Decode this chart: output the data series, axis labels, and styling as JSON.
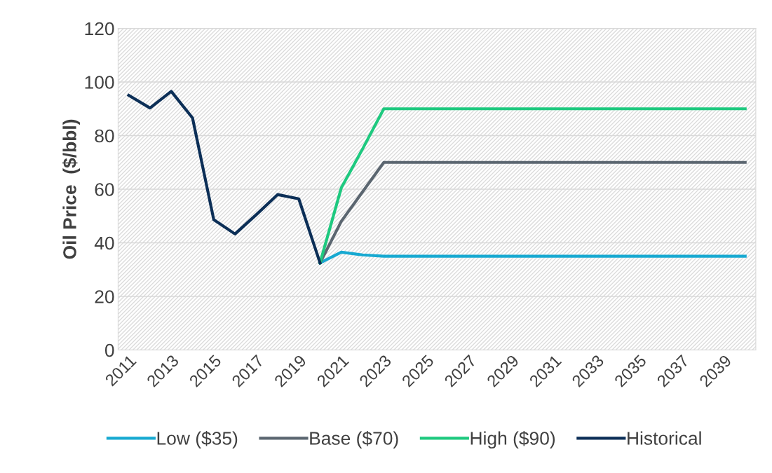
{
  "chart_data": {
    "type": "line",
    "ylabel": "Oil Price  ($/bbl)",
    "categories": [
      "2011",
      null,
      "2013",
      null,
      "2015",
      null,
      "2017",
      null,
      "2019",
      null,
      "2021",
      null,
      "2023",
      null,
      "2025",
      null,
      "2027",
      null,
      "2029",
      null,
      "2031",
      null,
      "2033",
      null,
      "2035",
      null,
      "2037",
      null,
      "2039",
      null
    ],
    "series": [
      {
        "name": "Low ($35)",
        "color": "#17a9d1",
        "values": [
          null,
          null,
          null,
          null,
          null,
          null,
          null,
          null,
          null,
          32.5,
          36.5,
          35.5,
          35,
          35,
          35,
          35,
          35,
          35,
          35,
          35,
          35,
          35,
          35,
          35,
          35,
          35,
          35,
          35,
          35,
          35
        ]
      },
      {
        "name": "Base ($70)",
        "color": "#5b6670",
        "values": [
          null,
          null,
          null,
          null,
          null,
          null,
          null,
          null,
          null,
          32.5,
          48,
          59,
          70,
          70,
          70,
          70,
          70,
          70,
          70,
          70,
          70,
          70,
          70,
          70,
          70,
          70,
          70,
          70,
          70,
          70
        ]
      },
      {
        "name": "High ($90)",
        "color": "#1ec97f",
        "values": [
          null,
          null,
          null,
          null,
          null,
          null,
          null,
          null,
          null,
          32.5,
          60.5,
          75,
          90,
          90,
          90,
          90,
          90,
          90,
          90,
          90,
          90,
          90,
          90,
          90,
          90,
          90,
          90,
          90,
          90,
          90
        ]
      },
      {
        "name": "Historical",
        "color": "#0c2f57",
        "values": [
          95,
          90.3,
          96.5,
          86.6,
          48.6,
          43.3,
          50.5,
          58,
          56.4,
          32.5,
          null,
          null,
          null,
          null,
          null,
          null,
          null,
          null,
          null,
          null,
          null,
          null,
          null,
          null,
          null,
          null,
          null,
          null,
          null,
          null
        ]
      }
    ],
    "ylim": [
      0,
      120
    ],
    "yticks": [
      0,
      20,
      40,
      60,
      80,
      100,
      120
    ],
    "grid": "y",
    "legend": "bottom",
    "line_style": "solid",
    "marker": "none"
  }
}
